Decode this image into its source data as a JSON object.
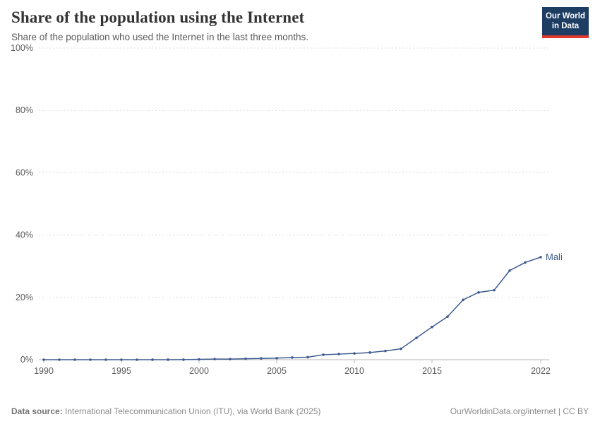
{
  "header": {
    "title": "Share of the population using the Internet",
    "subtitle": "Share of the population who used the Internet in the last three months.",
    "logo": {
      "line1": "Our World",
      "line2": "in Data"
    }
  },
  "chart_data": {
    "type": "line",
    "title": "Share of the population using the Internet",
    "x": [
      1990,
      1991,
      1992,
      1993,
      1994,
      1995,
      1996,
      1997,
      1998,
      1999,
      2000,
      2001,
      2002,
      2003,
      2004,
      2005,
      2006,
      2007,
      2008,
      2009,
      2010,
      2011,
      2012,
      2013,
      2014,
      2015,
      2016,
      2017,
      2018,
      2019,
      2020,
      2021,
      2022
    ],
    "series": [
      {
        "name": "Mali",
        "color": "#3d5a8f",
        "values": [
          0,
          0,
          0,
          0,
          0,
          0,
          0,
          0.01,
          0.01,
          0.02,
          0.1,
          0.2,
          0.2,
          0.3,
          0.4,
          0.5,
          0.7,
          0.8,
          1.6,
          1.8,
          2.0,
          2.3,
          2.8,
          3.5,
          7.0,
          10.5,
          13.8,
          19.2,
          21.6,
          22.3,
          28.6,
          31.2,
          32.9
        ]
      }
    ],
    "xlabel": "",
    "ylabel": "",
    "ylim": [
      0,
      100
    ],
    "yticks": [
      0,
      20,
      40,
      60,
      80,
      100
    ],
    "ytick_suffix": "%",
    "xticks": [
      1990,
      1995,
      2000,
      2005,
      2010,
      2015,
      2022
    ],
    "grid": "dashed-horizontal",
    "legend_position": "end-of-line-label"
  },
  "footer": {
    "datasource_label": "Data source:",
    "datasource": " International Telecommunication Union (ITU), via World Bank (2025)",
    "right": "OurWorldinData.org/internet | CC BY"
  },
  "colors": {
    "line": "#3d5a8f",
    "grid": "#dcdcdc",
    "zero_line": "#b5b5b5",
    "tick_text": "#5b5b5b",
    "logo_bg": "#1d3d63",
    "logo_red": "#e0382c"
  }
}
